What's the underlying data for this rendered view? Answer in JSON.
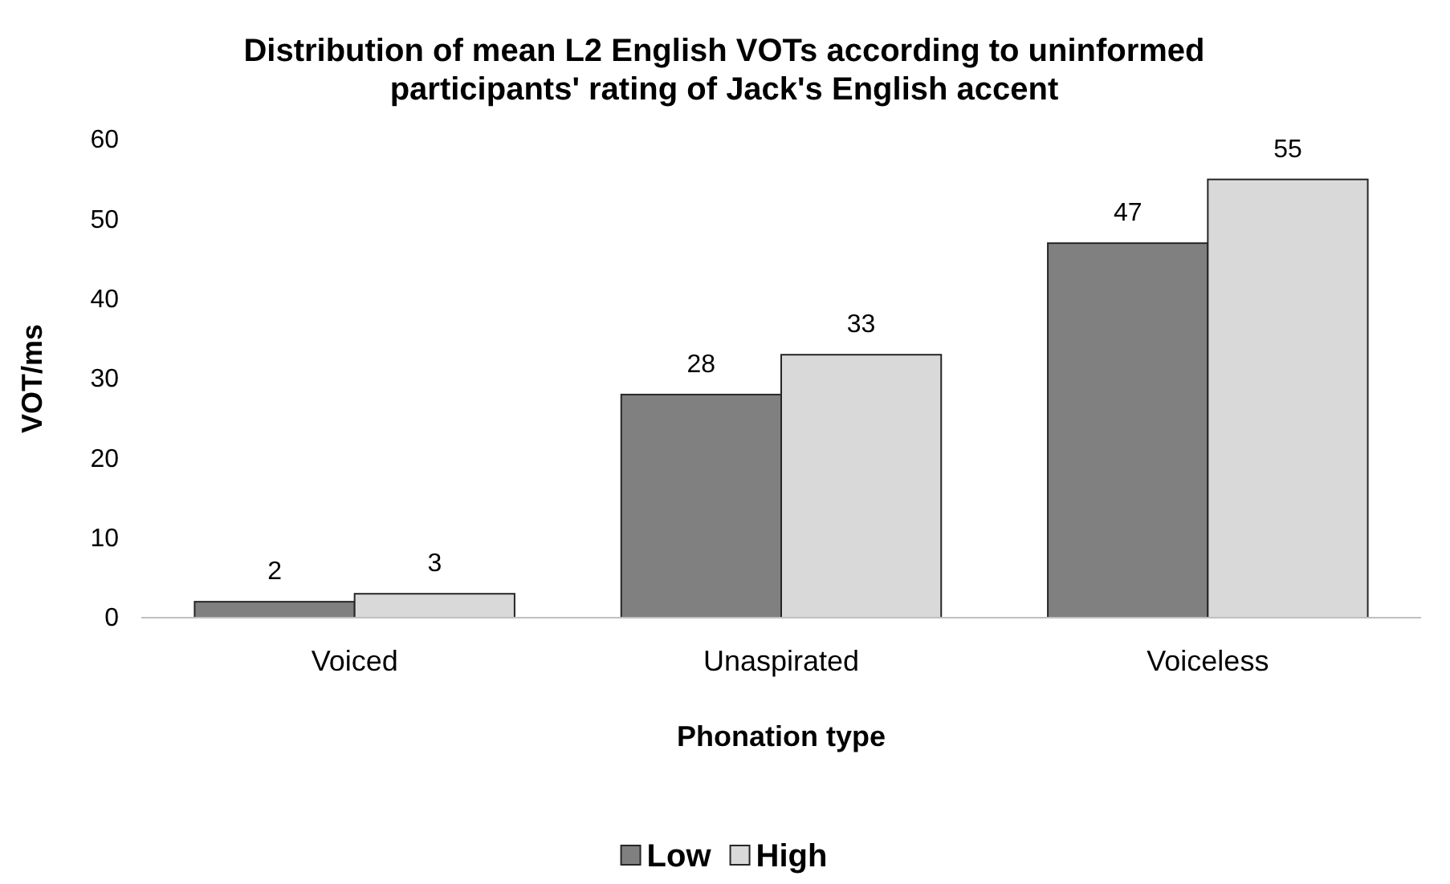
{
  "chart_data": {
    "type": "bar",
    "title": "Distribution of mean L2 English VOTs according to uninformed participants' rating of Jack's English accent",
    "xlabel": "Phonation type",
    "ylabel": "VOT/ms",
    "categories": [
      "Voiced",
      "Unaspirated",
      "Voiceless"
    ],
    "series": [
      {
        "name": "Low",
        "color": "#808080",
        "values": [
          2,
          28,
          47
        ]
      },
      {
        "name": "High",
        "color": "#d9d9d9",
        "values": [
          3,
          33,
          55
        ]
      }
    ],
    "ylim": [
      0,
      60
    ],
    "yticks": [
      0,
      10,
      20,
      30,
      40,
      50,
      60
    ],
    "grid": false,
    "legend": "bottom",
    "data_labels": true
  }
}
